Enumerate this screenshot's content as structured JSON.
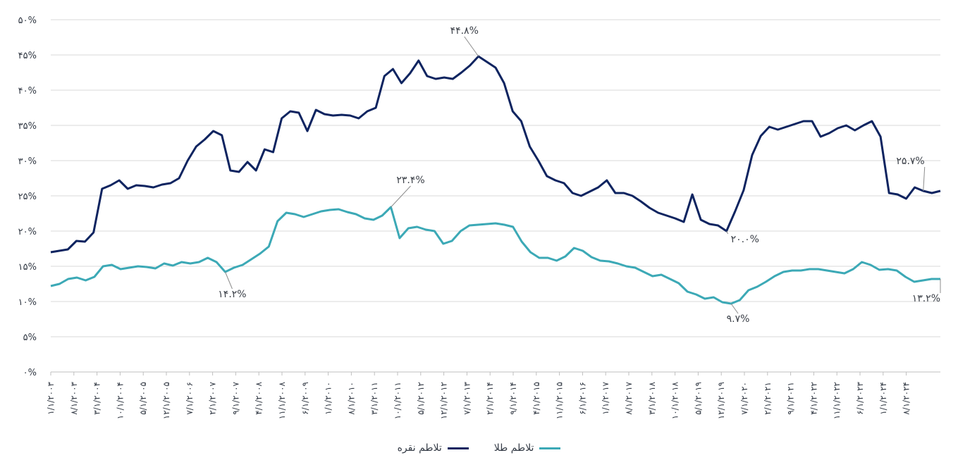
{
  "chart_data": {
    "type": "line",
    "ylim": [
      0,
      50
    ],
    "yticks": [
      "۰%",
      "۵%",
      "۱۰%",
      "۱۵%",
      "۲۰%",
      "۲۵%",
      "۳۰%",
      "۳۵%",
      "۴۰%",
      "۴۵%",
      "۵۰%"
    ],
    "x_tick_labels": [
      "۱/۱/۲۰۰۳",
      "۸/۱/۲۰۰۳",
      "۳/۱/۲۰۰۴",
      "۱۰/۱/۲۰۰۴",
      "۵/۱/۲۰۰۵",
      "۱۲/۱/۲۰۰۵",
      "۷/۱/۲۰۰۶",
      "۲/۱/۲۰۰۷",
      "۹/۱/۲۰۰۷",
      "۴/۱/۲۰۰۸",
      "۱۱/۱/۲۰۰۸",
      "۶/۱/۲۰۰۹",
      "۱/۱/۲۰۱۰",
      "۸/۱/۲۰۱۰",
      "۳/۱/۲۰۱۱",
      "۱۰/۱/۲۰۱۱",
      "۵/۱/۲۰۱۲",
      "۱۲/۱/۲۰۱۲",
      "۷/۱/۲۰۱۳",
      "۲/۱/۲۰۱۴",
      "۹/۱/۲۰۱۴",
      "۴/۱/۲۰۱۵",
      "۱۱/۱/۲۰۱۵",
      "۶/۱/۲۰۱۶",
      "۱/۱/۲۰۱۷",
      "۸/۱/۲۰۱۷",
      "۳/۱/۲۰۱۸",
      "۱۰/۱/۲۰۱۸",
      "۵/۱/۲۰۱۹",
      "۱۲/۱/۲۰۱۹",
      "۷/۱/۲۰۲۰",
      "۲/۱/۲۰۲۱",
      "۹/۱/۲۰۲۱",
      "۴/۱/۲۰۲۲",
      "۱۱/۱/۲۰۲۲",
      "۶/۱/۲۰۲۳",
      "۱/۱/۲۰۲۴",
      "۸/۱/۲۰۲۴"
    ],
    "grid": true,
    "legend_position": "bottom",
    "series": [
      {
        "name": "تلاطم نقره",
        "color": "#0e2460",
        "values": [
          17,
          17.2,
          17.4,
          18.6,
          18.5,
          19.8,
          26,
          26.5,
          27.2,
          26,
          26.5,
          26.4,
          26.2,
          26.6,
          26.8,
          27.5,
          30,
          32,
          33,
          34.2,
          33.6,
          28.6,
          28.4,
          29.8,
          28.6,
          31.6,
          31.2,
          36,
          37,
          36.8,
          34.2,
          37.2,
          36.6,
          36.4,
          36.5,
          36.4,
          36,
          37,
          37.5,
          42,
          43,
          41,
          42.4,
          44.2,
          42,
          41.6,
          41.8,
          41.6,
          42.5,
          43.5,
          44.8,
          44,
          43.2,
          41,
          37,
          35.6,
          32,
          30,
          27.8,
          27.2,
          26.8,
          25.4,
          25,
          25.6,
          26.2,
          27.2,
          25.4,
          25.4,
          25,
          24.2,
          23.3,
          22.6,
          22.2,
          21.8,
          21.3,
          25.2,
          21.6,
          21,
          20.8,
          20,
          22.8,
          25.8,
          30.8,
          33.5,
          34.8,
          34.4,
          34.8,
          35.2,
          35.6,
          35.6,
          33.4,
          33.9,
          34.6,
          35,
          34.3,
          35,
          35.6,
          33.4,
          25.4,
          25.2,
          24.6,
          26.2,
          25.7,
          25.4,
          25.7
        ]
      },
      {
        "name": "تلاطم طلا",
        "color": "#3ca9b6",
        "values": [
          12.2,
          12.5,
          13.2,
          13.4,
          13.0,
          13.5,
          15.0,
          15.2,
          14.6,
          14.8,
          15,
          14.9,
          14.7,
          15.4,
          15.1,
          15.6,
          15.4,
          15.6,
          16.2,
          15.6,
          14.2,
          14.8,
          15.2,
          16,
          16.8,
          17.8,
          21.4,
          22.6,
          22.4,
          22,
          22.4,
          22.8,
          23,
          23.1,
          22.7,
          22.4,
          21.8,
          21.6,
          22.2,
          23.4,
          19.0,
          20.4,
          20.6,
          20.2,
          20.0,
          18.2,
          18.6,
          20.0,
          20.8,
          20.9,
          21,
          21.1,
          20.9,
          20.6,
          18.5,
          17.0,
          16.2,
          16.2,
          15.8,
          16.4,
          17.6,
          17.2,
          16.3,
          15.8,
          15.7,
          15.4,
          15.0,
          14.8,
          14.2,
          13.6,
          13.8,
          13.2,
          12.6,
          11.4,
          11.0,
          10.4,
          10.6,
          9.9,
          9.7,
          10.2,
          11.6,
          12.1,
          12.8,
          13.6,
          14.2,
          14.4,
          14.4,
          14.6,
          14.6,
          14.4,
          14.2,
          14.0,
          14.6,
          15.6,
          15.2,
          14.5,
          14.6,
          14.4,
          13.5,
          12.8,
          13.0,
          13.2,
          13.2
        ]
      }
    ],
    "annotations": [
      {
        "text": "۴۴.۸%",
        "series": 0,
        "index": 50
      },
      {
        "text": "۲۰.۰%",
        "series": 0,
        "index": 79
      },
      {
        "text": "۲۵.۷%",
        "series": 0,
        "index": 102
      },
      {
        "text": "۲۳.۴%",
        "series": 1,
        "index": 39
      },
      {
        "text": "۱۴.۲%",
        "series": 1,
        "index": 20
      },
      {
        "text": "۹.۷%",
        "series": 1,
        "index": 78
      },
      {
        "text": "۱۳.۲%",
        "series": 1,
        "index": 102
      }
    ]
  },
  "legend": {
    "silver_label": "تلاطم نقره",
    "gold_label": "تلاطم طلا"
  }
}
